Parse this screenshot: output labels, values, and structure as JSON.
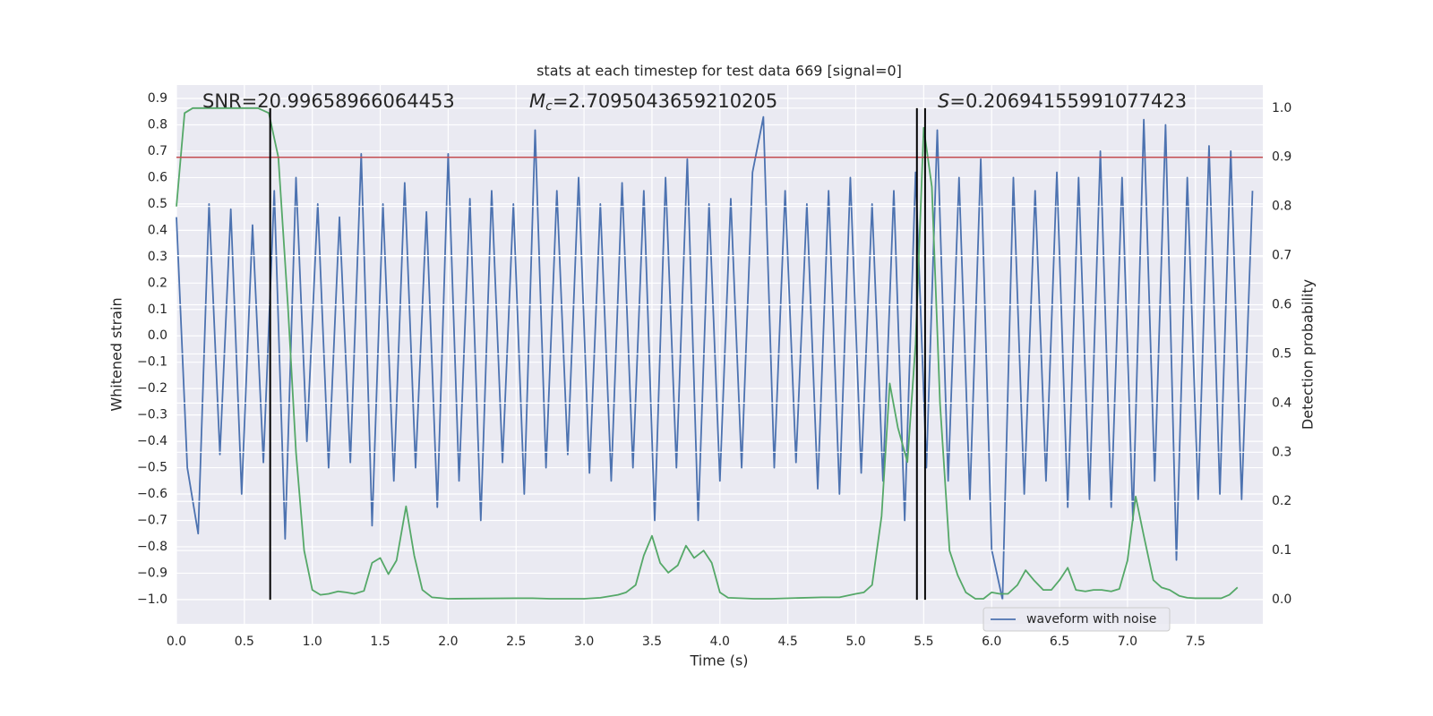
{
  "chart_data": {
    "type": "line",
    "title": "stats at each timestep for test data 669 [signal=0]",
    "xlabel": "Time (s)",
    "ylabel": "Whitened strain",
    "y2label": "Detection probability",
    "grid": true,
    "y2grid": true,
    "legend_loc": "lower right",
    "xlim": [
      0,
      7.996
    ],
    "xticks": [
      {
        "value": 0,
        "label": "0.0"
      },
      0.5,
      {
        "value": 1,
        "label": "1.0"
      },
      1.5,
      {
        "value": 2,
        "label": "2.0"
      },
      2.5,
      {
        "value": 3,
        "label": "3.0"
      },
      3.5,
      {
        "value": 4,
        "label": "4.0"
      },
      4.5,
      {
        "value": 5,
        "label": "5.0"
      },
      5.5,
      {
        "value": 6,
        "label": "6.0"
      },
      6.5,
      {
        "value": 7,
        "label": "7.0"
      },
      7.5
    ],
    "ylim": [
      -1.092,
      0.951
    ],
    "yticks": [
      {
        "value": -1.0,
        "label": "−1.0"
      },
      {
        "value": -0.9,
        "label": "−0.9"
      },
      {
        "value": -0.8,
        "label": "−0.8"
      },
      {
        "value": -0.7,
        "label": "−0.7"
      },
      {
        "value": -0.6,
        "label": "−0.6"
      },
      {
        "value": -0.5,
        "label": "−0.5"
      },
      {
        "value": -0.4,
        "label": "−0.4"
      },
      {
        "value": -0.3,
        "label": "−0.3"
      },
      {
        "value": -0.2,
        "label": "−0.2"
      },
      {
        "value": -0.1,
        "label": "−0.1"
      },
      {
        "value": 0,
        "label": "0.0"
      },
      0.1,
      0.2,
      0.3,
      0.4,
      0.5,
      0.6,
      0.7,
      0.8,
      0.9
    ],
    "y2lim": [
      -0.049,
      1.047
    ],
    "y2ticks": [
      {
        "value": 0,
        "label": "0.0"
      },
      0.1,
      0.2,
      0.3,
      0.4,
      0.5,
      0.6,
      0.7,
      0.8,
      0.9,
      {
        "value": 1,
        "label": "1.0"
      }
    ],
    "series": [
      {
        "name": "waveform with noise",
        "color": "#4c72b0",
        "x": [
          0,
          0.08,
          0.16,
          0.24,
          0.32,
          0.4,
          0.48,
          0.56,
          0.64,
          0.72,
          0.8,
          0.88,
          0.96,
          1.04,
          1.12,
          1.2,
          1.28,
          1.36,
          1.44,
          1.52,
          1.6,
          1.68,
          1.76,
          1.84,
          1.92,
          2.0,
          2.08,
          2.16,
          2.24,
          2.32,
          2.4,
          2.48,
          2.56,
          2.64,
          2.72,
          2.8,
          2.88,
          2.96,
          3.04,
          3.12,
          3.2,
          3.28,
          3.36,
          3.44,
          3.52,
          3.6,
          3.68,
          3.76,
          3.84,
          3.92,
          4.0,
          4.08,
          4.16,
          4.24,
          4.32,
          4.4,
          4.48,
          4.56,
          4.64,
          4.72,
          4.8,
          4.88,
          4.96,
          5.04,
          5.12,
          5.2,
          5.28,
          5.36,
          5.44,
          5.52,
          5.6,
          5.68,
          5.76,
          5.84,
          5.92,
          6.0,
          6.08,
          6.16,
          6.24,
          6.32,
          6.4,
          6.48,
          6.56,
          6.64,
          6.72,
          6.8,
          6.88,
          6.96,
          7.04,
          7.12,
          7.2,
          7.28,
          7.36,
          7.44,
          7.52,
          7.6,
          7.68,
          7.76,
          7.84,
          7.92
        ],
        "values": [
          0.45,
          -0.5,
          -0.75,
          0.5,
          -0.45,
          0.48,
          -0.6,
          0.42,
          -0.48,
          0.55,
          -0.77,
          0.6,
          -0.4,
          0.5,
          -0.5,
          0.45,
          -0.48,
          0.69,
          -0.72,
          0.5,
          -0.55,
          0.58,
          -0.5,
          0.47,
          -0.65,
          0.69,
          -0.55,
          0.52,
          -0.7,
          0.55,
          -0.48,
          0.5,
          -0.6,
          0.78,
          -0.5,
          0.55,
          -0.45,
          0.6,
          -0.52,
          0.5,
          -0.55,
          0.58,
          -0.5,
          0.55,
          -0.7,
          0.6,
          -0.5,
          0.67,
          -0.7,
          0.5,
          -0.55,
          0.52,
          -0.5,
          0.62,
          0.83,
          -0.5,
          0.55,
          -0.48,
          0.5,
          -0.58,
          0.55,
          -0.6,
          0.6,
          -0.52,
          0.5,
          -0.55,
          0.55,
          -0.7,
          0.62,
          -0.5,
          0.78,
          -0.55,
          0.6,
          -0.62,
          0.67,
          -0.81,
          -1.0,
          0.6,
          -0.6,
          0.55,
          -0.55,
          0.62,
          -0.65,
          0.6,
          -0.62,
          0.7,
          -0.65,
          0.6,
          -0.7,
          0.82,
          -0.55,
          0.8,
          -0.85,
          0.6,
          -0.62,
          0.72,
          -0.6,
          0.7,
          -0.62,
          0.55
        ]
      },
      {
        "color": "#55a868",
        "axis": "y2",
        "x": [
          0,
          0.06,
          0.12,
          0.6,
          0.68,
          0.75,
          0.82,
          0.88,
          0.94,
          1.0,
          1.06,
          1.12,
          1.19,
          1.25,
          1.31,
          1.38,
          1.44,
          1.5,
          1.56,
          1.62,
          1.69,
          1.75,
          1.81,
          1.88,
          2.0,
          2.5,
          2.62,
          2.75,
          3.0,
          3.12,
          3.25,
          3.31,
          3.38,
          3.44,
          3.5,
          3.56,
          3.62,
          3.69,
          3.75,
          3.81,
          3.88,
          3.94,
          4.0,
          4.06,
          4.25,
          4.38,
          4.75,
          4.88,
          5.0,
          5.06,
          5.12,
          5.19,
          5.25,
          5.31,
          5.38,
          5.44,
          5.5,
          5.56,
          5.62,
          5.69,
          5.75,
          5.81,
          5.88,
          5.94,
          6.0,
          6.06,
          6.12,
          6.19,
          6.25,
          6.31,
          6.38,
          6.44,
          6.5,
          6.56,
          6.62,
          6.69,
          6.75,
          6.81,
          6.88,
          6.94,
          7.0,
          7.06,
          7.12,
          7.19,
          7.25,
          7.31,
          7.38,
          7.44,
          7.5,
          7.62,
          7.69,
          7.75,
          7.81
        ],
        "values": [
          0.8,
          0.99,
          1.0,
          1.0,
          0.99,
          0.9,
          0.6,
          0.3,
          0.1,
          0.02,
          0.01,
          0.012,
          0.017,
          0.015,
          0.012,
          0.018,
          0.075,
          0.085,
          0.052,
          0.08,
          0.19,
          0.09,
          0.02,
          0.005,
          0.002,
          0.003,
          0.003,
          0.002,
          0.002,
          0.004,
          0.01,
          0.015,
          0.03,
          0.09,
          0.13,
          0.075,
          0.055,
          0.07,
          0.11,
          0.085,
          0.1,
          0.075,
          0.015,
          0.004,
          0.002,
          0.002,
          0.005,
          0.005,
          0.012,
          0.015,
          0.03,
          0.17,
          0.44,
          0.35,
          0.28,
          0.52,
          0.96,
          0.84,
          0.4,
          0.1,
          0.05,
          0.015,
          0.002,
          0.002,
          0.015,
          0.012,
          0.012,
          0.03,
          0.06,
          0.04,
          0.02,
          0.02,
          0.04,
          0.065,
          0.02,
          0.017,
          0.02,
          0.02,
          0.017,
          0.022,
          0.08,
          0.21,
          0.13,
          0.04,
          0.025,
          0.02,
          0.008,
          0.004,
          0.003,
          0.003,
          0.003,
          0.01,
          0.025
        ]
      }
    ],
    "hlines": [
      {
        "y": 0.9,
        "axis": "y2",
        "color": "#c44e52"
      }
    ],
    "vlines": [
      {
        "x": 0.69,
        "ymin": 0,
        "ymax": 1,
        "axis": "y2",
        "color": "#000000"
      },
      {
        "x": 5.45,
        "ymin": 0,
        "ymax": 1,
        "axis": "y2",
        "color": "#000000"
      },
      {
        "x": 5.51,
        "ymin": 0,
        "ymax": 1,
        "axis": "y2",
        "color": "#000000"
      }
    ],
    "annotations": {
      "snr": "SNR=20.99658966064453",
      "chirp_mass": {
        "symbol": "M",
        "subscript": "c",
        "text": "=2.7095043659210205"
      },
      "s": {
        "symbol": "S",
        "text": "=0.20694155991077423"
      }
    }
  }
}
